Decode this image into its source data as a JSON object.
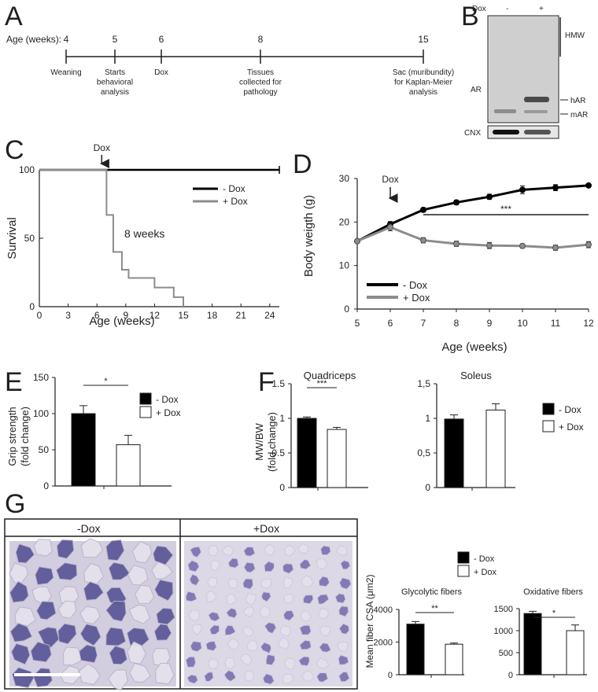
{
  "panels": [
    "A",
    "B",
    "C",
    "D",
    "E",
    "F",
    "G"
  ],
  "colors": {
    "minus_dox": "#000000",
    "plus_dox": "#8c8c8c",
    "bar_minus": "#000000",
    "bar_plus": "#ffffff",
    "stain": "#5a5296",
    "stain_bg": "#d8d4e2"
  },
  "timeline": {
    "axis_label": "Age (weeks):",
    "events": [
      {
        "week": "4",
        "desc": [
          "Weaning"
        ]
      },
      {
        "week": "5",
        "desc": [
          "Starts",
          "behavioral",
          "analysis"
        ]
      },
      {
        "week": "6",
        "desc": [
          "Dox"
        ]
      },
      {
        "week": "8",
        "desc": [
          "Tissues",
          "collected for",
          "pathology"
        ]
      },
      {
        "week": "15",
        "desc": [
          "Sac (muribundity)",
          "for Kaplan-Meier",
          "analysis"
        ]
      }
    ]
  },
  "western": {
    "dox_label": "Dox",
    "lanes": [
      "-",
      "+"
    ],
    "hmw": "HMW",
    "ar": "AR",
    "har": "hAR",
    "mar": "mAR",
    "cnx": "CNX"
  },
  "chart_data": [
    {
      "panel": "C",
      "type": "line",
      "xlabel": "Age (weeks)",
      "ylabel": "Survival",
      "xlim": [
        0,
        25
      ],
      "ylim": [
        0,
        100
      ],
      "xticks": [
        "0",
        "3",
        "6",
        "9",
        "12",
        "15",
        "18",
        "21",
        "24"
      ],
      "yticks": [
        "0",
        "50",
        "100"
      ],
      "annotation": "8 weeks",
      "arrow_label": "Dox",
      "arrow_at": 6.5,
      "legend": "right",
      "series": [
        {
          "name": "- Dox",
          "step": true,
          "x": [
            0,
            25
          ],
          "y": [
            100,
            100
          ]
        },
        {
          "name": "+ Dox",
          "step": true,
          "x": [
            0,
            7,
            7.7,
            8.6,
            9.3,
            10.2,
            12,
            14,
            15
          ],
          "y": [
            100,
            67,
            40,
            27,
            21,
            21,
            14,
            7,
            0
          ]
        }
      ]
    },
    {
      "panel": "D",
      "type": "line",
      "xlabel": "Age (weeks)",
      "ylabel": "Body weigth (g)",
      "xlim": [
        5,
        12
      ],
      "ylim": [
        0,
        30
      ],
      "xticks": [
        "5",
        "6",
        "7",
        "8",
        "9",
        "10",
        "11",
        "12"
      ],
      "yticks": [
        "0",
        "10",
        "20",
        "30"
      ],
      "arrow_label": "Dox",
      "arrow_at": 6,
      "significance": "***",
      "legend": "bottom-left",
      "x": [
        5,
        6,
        7,
        8,
        9,
        10,
        11,
        12
      ],
      "series": [
        {
          "name": "- Dox",
          "y": [
            15.6,
            19.5,
            22.8,
            24.5,
            25.8,
            27.4,
            27.9,
            28.4
          ],
          "err": [
            0.4,
            0.6,
            0.5,
            0.5,
            0.6,
            0.9,
            0.7,
            0.4
          ]
        },
        {
          "name": "+ Dox",
          "y": [
            15.6,
            18.8,
            15.8,
            15.0,
            14.6,
            14.5,
            14.1,
            14.8
          ],
          "err": [
            0.4,
            0.8,
            0.6,
            0.6,
            0.7,
            0.5,
            0.6,
            0.7
          ]
        }
      ]
    },
    {
      "panel": "E",
      "type": "bar",
      "ylabel": "Grip strength\n(fold change)",
      "ylim": [
        0,
        150
      ],
      "yticks": [
        "0",
        "50",
        "100",
        "150"
      ],
      "significance": "*",
      "legend": "right",
      "series": [
        {
          "name": "- Dox",
          "values": [
            100
          ],
          "err": [
            11
          ]
        },
        {
          "name": "+ Dox",
          "values": [
            57
          ],
          "err": [
            13
          ]
        }
      ]
    },
    {
      "panel": "F",
      "type": "bar",
      "title": "Quadriceps",
      "ylabel": "MW/BW\n(fold change)",
      "ylim": [
        0,
        1.5
      ],
      "yticks": [
        "0",
        "0.5",
        "1",
        "1.5"
      ],
      "significance": "***",
      "series": [
        {
          "name": "- Dox",
          "values": [
            1.0
          ],
          "err": [
            0.02
          ]
        },
        {
          "name": "+ Dox",
          "values": [
            0.84
          ],
          "err": [
            0.03
          ]
        }
      ]
    },
    {
      "panel": "F",
      "type": "bar",
      "title": "Soleus",
      "ylim": [
        0,
        1.5
      ],
      "yticks": [
        "0",
        "0,5",
        "1",
        "1,5"
      ],
      "legend": "right",
      "series": [
        {
          "name": "- Dox",
          "values": [
            0.99
          ],
          "err": [
            0.06
          ]
        },
        {
          "name": "+ Dox",
          "values": [
            1.12
          ],
          "err": [
            0.09
          ]
        }
      ]
    },
    {
      "panel": "G",
      "type": "bar",
      "title": "Glycolytic fibers",
      "ylabel": "Mean fiber CSA (μm2)",
      "ylim": [
        0,
        4000
      ],
      "yticks": [
        "0",
        "2000",
        "4000"
      ],
      "significance": "**",
      "legend": "top",
      "series": [
        {
          "name": "- Dox",
          "values": [
            3100
          ],
          "err": [
            160
          ]
        },
        {
          "name": "+ Dox",
          "values": [
            1870
          ],
          "err": [
            70
          ]
        }
      ]
    },
    {
      "panel": "G",
      "type": "bar",
      "title": "Oxidative fibers",
      "ylim": [
        0,
        1500
      ],
      "yticks": [
        "0",
        "500",
        "1000",
        "1500"
      ],
      "significance": "*",
      "series": [
        {
          "name": "- Dox",
          "values": [
            1390
          ],
          "err": [
            50
          ]
        },
        {
          "name": "+ Dox",
          "values": [
            1000
          ],
          "err": [
            130
          ]
        }
      ]
    }
  ],
  "histology": {
    "labels": [
      "-Dox",
      "+Dox"
    ]
  }
}
